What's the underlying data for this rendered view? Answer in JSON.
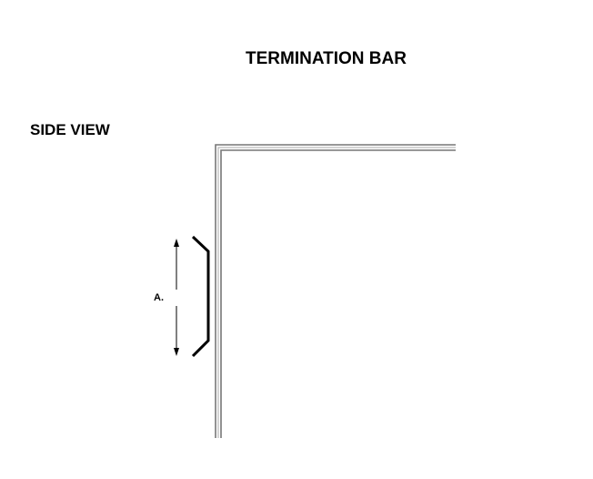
{
  "title": "TERMINATION BAR",
  "view_label": "SIDE VIEW",
  "dimension_label": "A.",
  "colors": {
    "line": "#000000",
    "wall_stroke": "#777777",
    "background": "#ffffff"
  }
}
